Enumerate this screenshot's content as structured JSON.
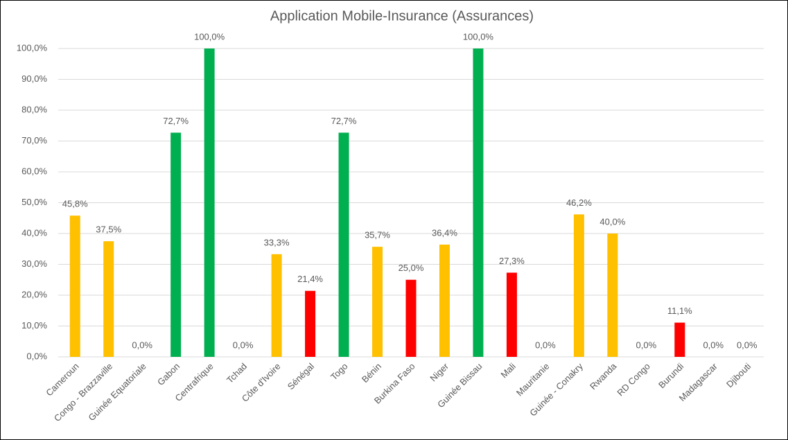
{
  "chart_data": {
    "type": "bar",
    "title": "Application Mobile-Insurance  (Assurances)",
    "categories": [
      "Cameroun",
      "Congo - Brazzaville",
      "Guinée Equatoriale",
      "Gabon",
      "Centrafrique",
      "Tchad",
      "Côte d'Ivoire",
      "Sénégal",
      "Togo",
      "Bénin",
      "Burkina Faso",
      "Niger",
      "Guinée Bissau",
      "Mali",
      "Mauritanie",
      "Guinée - Conakry",
      "Rwanda",
      "RD Congo",
      "Burundi",
      "Madagascar",
      "Djibouti"
    ],
    "values": [
      45.8,
      37.5,
      0,
      72.7,
      100,
      0,
      33.3,
      21.4,
      72.7,
      35.7,
      25,
      36.4,
      100,
      27.3,
      0,
      46.2,
      40,
      0,
      11.1,
      0,
      0
    ],
    "value_labels": [
      "45,8%",
      "37,5%",
      "0,0%",
      "72,7%",
      "100,0%",
      "0,0%",
      "33,3%",
      "21,4%",
      "72,7%",
      "35,7%",
      "25,0%",
      "36,4%",
      "100,0%",
      "27,3%",
      "0,0%",
      "46,2%",
      "40,0%",
      "0,0%",
      "11,1%",
      "0,0%",
      "0,0%"
    ],
    "colors": [
      "#FFC000",
      "#FFC000",
      "#FFC000",
      "#00B050",
      "#00B050",
      "#FFC000",
      "#FFC000",
      "#FF0000",
      "#00B050",
      "#FFC000",
      "#FF0000",
      "#FFC000",
      "#00B050",
      "#FF0000",
      "#FFC000",
      "#FFC000",
      "#FFC000",
      "#FFC000",
      "#FF0000",
      "#FFC000",
      "#FFC000"
    ],
    "ylim": [
      0,
      100
    ],
    "yticks": [
      {
        "value": 0,
        "label": "0,0%"
      },
      {
        "value": 10,
        "label": "10,0%"
      },
      {
        "value": 20,
        "label": "20,0%"
      },
      {
        "value": 30,
        "label": "30,0%"
      },
      {
        "value": 40,
        "label": "40,0%"
      },
      {
        "value": 50,
        "label": "50,0%"
      },
      {
        "value": 60,
        "label": "60,0%"
      },
      {
        "value": 70,
        "label": "70,0%"
      },
      {
        "value": 80,
        "label": "80,0%"
      },
      {
        "value": 90,
        "label": "90,0%"
      },
      {
        "value": 100,
        "label": "100,0%"
      }
    ],
    "grid": true
  }
}
